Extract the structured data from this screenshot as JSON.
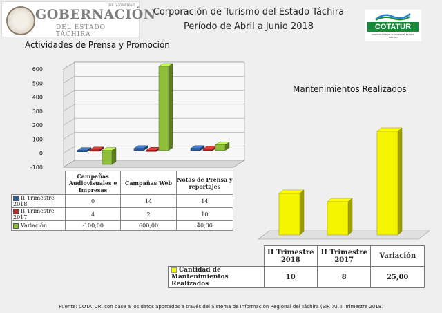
{
  "header": {
    "logo_left_rif": "RIF: G-20000160-7",
    "logo_left_line1": "GOBERNACIÓN",
    "logo_left_line2": "DEL ESTADO TÁCHIRA",
    "title_line1": "Corporación de Turismo del Estado Táchira",
    "title_line2": "Período de Abril a Junio 2018",
    "logo_right_word": "COTATUR",
    "logo_right_sub": "CORPORACIÓN DE TURISMO DEL ESTADO TÁCHIRA"
  },
  "chart_data": [
    {
      "type": "bar",
      "title": "Actividades de Prensa y Promoción",
      "categories": [
        "Campañas Audiovisuales e Impresas",
        "Campañas Web",
        "Notas de Prensa y reportajes"
      ],
      "series": [
        {
          "name": "II Trimestre 2018",
          "values": [
            0,
            14,
            14
          ],
          "color": "#2f5f9a"
        },
        {
          "name": "II Trimestre 2017",
          "values": [
            4,
            2,
            10
          ],
          "color": "#b02a2a"
        },
        {
          "name": "Variación",
          "values": [
            -100,
            600,
            40
          ],
          "color": "#8fbf3a"
        }
      ],
      "table_values": [
        [
          "0",
          "14",
          "14"
        ],
        [
          "4",
          "2",
          "10"
        ],
        [
          "-100,00",
          "600,00",
          "40,00"
        ]
      ],
      "yticks": [
        600,
        500,
        400,
        300,
        200,
        100,
        0,
        -100
      ],
      "ylim": [
        -100,
        600
      ],
      "grid": true,
      "legend": "data table"
    },
    {
      "type": "bar",
      "title": "Mantenimientos Realizados",
      "categories": [
        "II Trimestre 2018",
        "II Trimestre 2017",
        "Variación"
      ],
      "series": [
        {
          "name": "Cantidad de Mantenimientos Realizados",
          "values": [
            10,
            8,
            25
          ],
          "color": "#f5f500"
        }
      ],
      "table_values": [
        "10",
        "8",
        "25,00"
      ],
      "legend": "data table"
    }
  ],
  "footer": "Fuente: COTATUR, con base a  los datos aportados a través del Sistema de  Información Regional del Táchira (SIRTA). II Trimestre 2018."
}
